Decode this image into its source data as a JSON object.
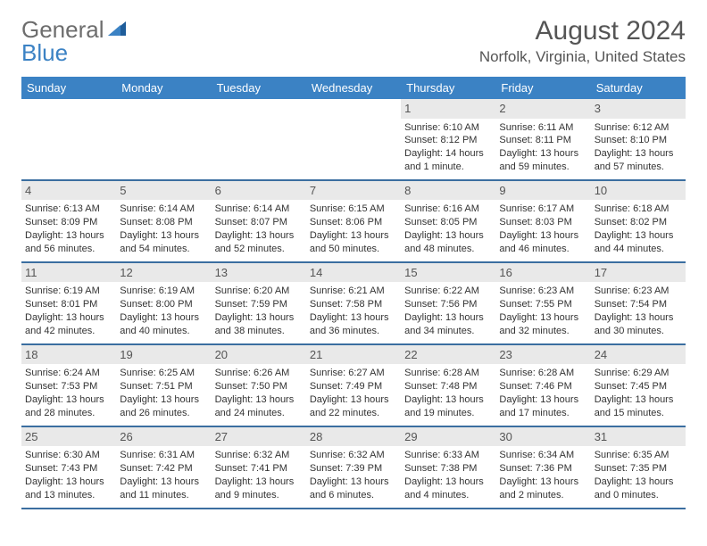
{
  "brand": {
    "part1": "General",
    "part2": "Blue"
  },
  "title": "August 2024",
  "location": "Norfolk, Virginia, United States",
  "colors": {
    "header_bg": "#3b82c4",
    "header_text": "#ffffff",
    "week_border": "#3b6ea0",
    "daynum_bg": "#e9e9e9",
    "text": "#333333",
    "brand_gray": "#6d6d6d",
    "brand_blue": "#3b82c4"
  },
  "weekdays": [
    "Sunday",
    "Monday",
    "Tuesday",
    "Wednesday",
    "Thursday",
    "Friday",
    "Saturday"
  ],
  "weeks": [
    [
      {
        "empty": true
      },
      {
        "empty": true
      },
      {
        "empty": true
      },
      {
        "empty": true
      },
      {
        "day": "1",
        "sunrise": "Sunrise: 6:10 AM",
        "sunset": "Sunset: 8:12 PM",
        "daylight": "Daylight: 14 hours and 1 minute."
      },
      {
        "day": "2",
        "sunrise": "Sunrise: 6:11 AM",
        "sunset": "Sunset: 8:11 PM",
        "daylight": "Daylight: 13 hours and 59 minutes."
      },
      {
        "day": "3",
        "sunrise": "Sunrise: 6:12 AM",
        "sunset": "Sunset: 8:10 PM",
        "daylight": "Daylight: 13 hours and 57 minutes."
      }
    ],
    [
      {
        "day": "4",
        "sunrise": "Sunrise: 6:13 AM",
        "sunset": "Sunset: 8:09 PM",
        "daylight": "Daylight: 13 hours and 56 minutes."
      },
      {
        "day": "5",
        "sunrise": "Sunrise: 6:14 AM",
        "sunset": "Sunset: 8:08 PM",
        "daylight": "Daylight: 13 hours and 54 minutes."
      },
      {
        "day": "6",
        "sunrise": "Sunrise: 6:14 AM",
        "sunset": "Sunset: 8:07 PM",
        "daylight": "Daylight: 13 hours and 52 minutes."
      },
      {
        "day": "7",
        "sunrise": "Sunrise: 6:15 AM",
        "sunset": "Sunset: 8:06 PM",
        "daylight": "Daylight: 13 hours and 50 minutes."
      },
      {
        "day": "8",
        "sunrise": "Sunrise: 6:16 AM",
        "sunset": "Sunset: 8:05 PM",
        "daylight": "Daylight: 13 hours and 48 minutes."
      },
      {
        "day": "9",
        "sunrise": "Sunrise: 6:17 AM",
        "sunset": "Sunset: 8:03 PM",
        "daylight": "Daylight: 13 hours and 46 minutes."
      },
      {
        "day": "10",
        "sunrise": "Sunrise: 6:18 AM",
        "sunset": "Sunset: 8:02 PM",
        "daylight": "Daylight: 13 hours and 44 minutes."
      }
    ],
    [
      {
        "day": "11",
        "sunrise": "Sunrise: 6:19 AM",
        "sunset": "Sunset: 8:01 PM",
        "daylight": "Daylight: 13 hours and 42 minutes."
      },
      {
        "day": "12",
        "sunrise": "Sunrise: 6:19 AM",
        "sunset": "Sunset: 8:00 PM",
        "daylight": "Daylight: 13 hours and 40 minutes."
      },
      {
        "day": "13",
        "sunrise": "Sunrise: 6:20 AM",
        "sunset": "Sunset: 7:59 PM",
        "daylight": "Daylight: 13 hours and 38 minutes."
      },
      {
        "day": "14",
        "sunrise": "Sunrise: 6:21 AM",
        "sunset": "Sunset: 7:58 PM",
        "daylight": "Daylight: 13 hours and 36 minutes."
      },
      {
        "day": "15",
        "sunrise": "Sunrise: 6:22 AM",
        "sunset": "Sunset: 7:56 PM",
        "daylight": "Daylight: 13 hours and 34 minutes."
      },
      {
        "day": "16",
        "sunrise": "Sunrise: 6:23 AM",
        "sunset": "Sunset: 7:55 PM",
        "daylight": "Daylight: 13 hours and 32 minutes."
      },
      {
        "day": "17",
        "sunrise": "Sunrise: 6:23 AM",
        "sunset": "Sunset: 7:54 PM",
        "daylight": "Daylight: 13 hours and 30 minutes."
      }
    ],
    [
      {
        "day": "18",
        "sunrise": "Sunrise: 6:24 AM",
        "sunset": "Sunset: 7:53 PM",
        "daylight": "Daylight: 13 hours and 28 minutes."
      },
      {
        "day": "19",
        "sunrise": "Sunrise: 6:25 AM",
        "sunset": "Sunset: 7:51 PM",
        "daylight": "Daylight: 13 hours and 26 minutes."
      },
      {
        "day": "20",
        "sunrise": "Sunrise: 6:26 AM",
        "sunset": "Sunset: 7:50 PM",
        "daylight": "Daylight: 13 hours and 24 minutes."
      },
      {
        "day": "21",
        "sunrise": "Sunrise: 6:27 AM",
        "sunset": "Sunset: 7:49 PM",
        "daylight": "Daylight: 13 hours and 22 minutes."
      },
      {
        "day": "22",
        "sunrise": "Sunrise: 6:28 AM",
        "sunset": "Sunset: 7:48 PM",
        "daylight": "Daylight: 13 hours and 19 minutes."
      },
      {
        "day": "23",
        "sunrise": "Sunrise: 6:28 AM",
        "sunset": "Sunset: 7:46 PM",
        "daylight": "Daylight: 13 hours and 17 minutes."
      },
      {
        "day": "24",
        "sunrise": "Sunrise: 6:29 AM",
        "sunset": "Sunset: 7:45 PM",
        "daylight": "Daylight: 13 hours and 15 minutes."
      }
    ],
    [
      {
        "day": "25",
        "sunrise": "Sunrise: 6:30 AM",
        "sunset": "Sunset: 7:43 PM",
        "daylight": "Daylight: 13 hours and 13 minutes."
      },
      {
        "day": "26",
        "sunrise": "Sunrise: 6:31 AM",
        "sunset": "Sunset: 7:42 PM",
        "daylight": "Daylight: 13 hours and 11 minutes."
      },
      {
        "day": "27",
        "sunrise": "Sunrise: 6:32 AM",
        "sunset": "Sunset: 7:41 PM",
        "daylight": "Daylight: 13 hours and 9 minutes."
      },
      {
        "day": "28",
        "sunrise": "Sunrise: 6:32 AM",
        "sunset": "Sunset: 7:39 PM",
        "daylight": "Daylight: 13 hours and 6 minutes."
      },
      {
        "day": "29",
        "sunrise": "Sunrise: 6:33 AM",
        "sunset": "Sunset: 7:38 PM",
        "daylight": "Daylight: 13 hours and 4 minutes."
      },
      {
        "day": "30",
        "sunrise": "Sunrise: 6:34 AM",
        "sunset": "Sunset: 7:36 PM",
        "daylight": "Daylight: 13 hours and 2 minutes."
      },
      {
        "day": "31",
        "sunrise": "Sunrise: 6:35 AM",
        "sunset": "Sunset: 7:35 PM",
        "daylight": "Daylight: 13 hours and 0 minutes."
      }
    ]
  ]
}
